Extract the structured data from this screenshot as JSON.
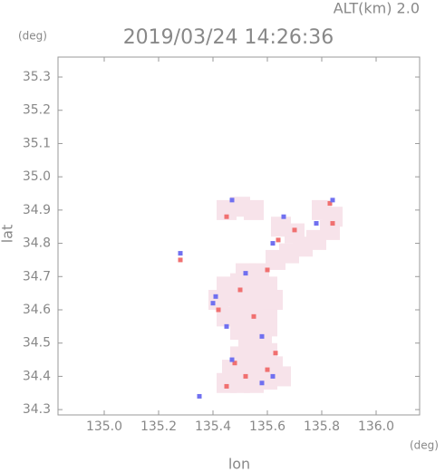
{
  "chart_data": {
    "type": "scatter",
    "title": "2019/03/24 14:26:36",
    "subtitle": "ALT(km) 2.0",
    "x_label": "lon",
    "y_label": "lat",
    "x_unit": "(deg)",
    "y_unit": "(deg)",
    "xlim": [
      134.83,
      136.16
    ],
    "ylim": [
      34.284,
      35.36
    ],
    "xticks": [
      {
        "value": 135,
        "label": "135.0"
      },
      135.2,
      135.4,
      135.6,
      135.8,
      {
        "value": 136,
        "label": "136.0"
      }
    ],
    "yticks": [
      34.3,
      34.4,
      34.5,
      34.6,
      34.7,
      34.8,
      34.9,
      {
        "value": 35,
        "label": "35.0"
      },
      35.1,
      35.2,
      35.3
    ],
    "grid": false,
    "series": [
      {
        "color": "#f7e3ea",
        "x": [
          135.45,
          135.5,
          135.55,
          135.6,
          135.65,
          135.47,
          135.52,
          135.57,
          135.62,
          135.5,
          135.55,
          135.6,
          135.53,
          135.58,
          135.5,
          135.55,
          135.6,
          135.45,
          135.5,
          135.55,
          135.6,
          135.42,
          135.47,
          135.52,
          135.57,
          135.62,
          135.45,
          135.5,
          135.55,
          135.6,
          135.52,
          135.57,
          135.63,
          135.68,
          135.73,
          135.78,
          135.83,
          135.7,
          135.65,
          135.45,
          135.5,
          135.55,
          135.8,
          135.84
        ],
        "y": [
          34.38,
          34.38,
          34.38,
          34.39,
          34.4,
          34.42,
          34.42,
          34.43,
          34.43,
          34.46,
          34.47,
          34.47,
          34.5,
          34.51,
          34.54,
          34.55,
          34.55,
          34.58,
          34.59,
          34.6,
          34.6,
          34.63,
          34.64,
          34.64,
          34.64,
          34.63,
          34.67,
          34.68,
          34.68,
          34.67,
          34.71,
          34.71,
          34.75,
          34.77,
          34.79,
          34.81,
          34.84,
          34.83,
          34.85,
          34.9,
          34.91,
          34.9,
          34.9,
          34.88
        ]
      },
      {
        "color": "#f07070",
        "x": [
          135.28,
          135.45,
          135.52,
          135.6,
          135.48,
          135.63,
          135.55,
          135.42,
          135.6,
          135.7,
          135.84,
          135.83,
          135.45,
          135.64,
          135.5
        ],
        "y": [
          34.75,
          34.37,
          34.4,
          34.42,
          34.44,
          34.47,
          34.58,
          34.6,
          34.72,
          34.84,
          34.86,
          34.92,
          34.88,
          34.81,
          34.66
        ]
      },
      {
        "color": "#7070f0",
        "x": [
          135.28,
          135.35,
          135.47,
          135.58,
          135.62,
          135.41,
          135.52,
          135.4,
          135.66,
          135.84,
          135.78,
          135.47,
          135.58,
          135.45,
          135.62
        ],
        "y": [
          34.77,
          34.34,
          34.45,
          34.38,
          34.4,
          34.64,
          34.71,
          34.62,
          34.88,
          34.93,
          34.86,
          34.93,
          34.52,
          34.55,
          34.8
        ]
      }
    ]
  }
}
